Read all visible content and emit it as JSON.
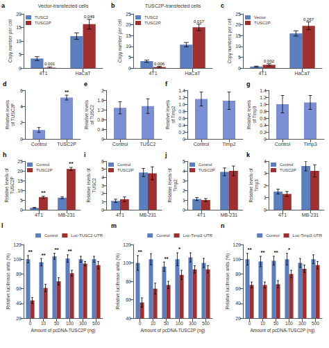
{
  "chart_data": [
    {
      "type": "bar",
      "panel": "a",
      "title": "Vector-transfected cells",
      "ylabel": "Copy number per cell",
      "categories": [
        "4T1",
        "HaCaT"
      ],
      "series": [
        {
          "name": "TUSC2",
          "color": "#5b7fbe",
          "values": [
            3.5,
            11.8
          ],
          "errors": [
            0.7,
            1.2
          ]
        },
        {
          "name": "TUSC2P",
          "color": "#a03030",
          "values": [
            0.15,
            16.2
          ],
          "errors": [
            0.3,
            1.8
          ]
        }
      ],
      "annotations": [
        {
          "text": "0.001",
          "category": "4T1",
          "series": "TUSC2P"
        },
        {
          "text": "0.049",
          "category": "HaCaT",
          "series": "TUSC2P"
        }
      ],
      "ylim": [
        0,
        20
      ],
      "yticks": [
        0,
        5,
        10,
        15,
        20
      ],
      "legend": "upper left",
      "grid": false
    },
    {
      "type": "bar",
      "panel": "b",
      "title": "TUSC2P-transfected cells",
      "ylabel": "Copy number per cell",
      "categories": [
        "4T1",
        "HaCaT"
      ],
      "series": [
        {
          "name": "TUSC2",
          "color": "#5b7fbe",
          "values": [
            3.2,
            10.8
          ],
          "errors": [
            0.5,
            1.0
          ]
        },
        {
          "name": "TUSC2P",
          "color": "#a03030",
          "values": [
            0.5,
            18.8
          ],
          "errors": [
            0.3,
            1.5
          ]
        }
      ],
      "annotations": [
        {
          "text": "0.006",
          "category": "4T1",
          "series": "TUSC2P"
        },
        {
          "text": "0.017",
          "category": "HaCaT",
          "series": "TUSC2P"
        }
      ],
      "ylim": [
        0,
        25
      ],
      "yticks": [
        0,
        5,
        10,
        15,
        20,
        25
      ],
      "legend": "upper left",
      "grid": false
    },
    {
      "type": "bar",
      "panel": "c",
      "ylabel": "Copy numbers per cell",
      "categories": [
        "4T1",
        "HaCaT"
      ],
      "series": [
        {
          "name": "Vector",
          "color": "#5b7fbe",
          "values": [
            0.7,
            16.0
          ],
          "errors": [
            0.2,
            1.2
          ]
        },
        {
          "name": "TUSC2P",
          "color": "#a03030",
          "values": [
            1.5,
            19.5
          ],
          "errors": [
            0.5,
            1.8
          ]
        }
      ],
      "annotations": [
        {
          "text": "0.002",
          "category": "4T1",
          "series": "TUSC2P"
        },
        {
          "text": "0.267",
          "category": "HaCaT",
          "series": "TUSC2P"
        }
      ],
      "ylim": [
        0,
        25
      ],
      "yticks": [
        0,
        5,
        10,
        15,
        20,
        25
      ],
      "legend": "upper left",
      "grid": false
    },
    {
      "type": "bar",
      "panel": "d",
      "ylabel": "Relative levels\nof TUSC2P",
      "categories": [
        "Control",
        "TUSC2P"
      ],
      "values": [
        1.1,
        5.1
      ],
      "errors": [
        0.3,
        0.3
      ],
      "color": "#7b8fd4",
      "annotations": [
        {
          "text": "**",
          "category": "TUSC2P"
        }
      ],
      "ylim": [
        0,
        6
      ],
      "yticks": [
        0,
        2,
        4,
        6
      ],
      "grid": false
    },
    {
      "type": "bar",
      "panel": "e",
      "ylabel": "Relative levels\nof TUSC2",
      "categories": [
        "Control",
        "TUSC2"
      ],
      "values": [
        1.28,
        1.35
      ],
      "errors": [
        0.25,
        0.3
      ],
      "color": "#7b8fd4",
      "ylim": [
        0,
        2
      ],
      "yticks": [
        0,
        0.4,
        0.8,
        1.2,
        1.6,
        2
      ],
      "grid": false
    },
    {
      "type": "bar",
      "panel": "f",
      "ylabel": "Relative levels\nof Timp2",
      "categories": [
        "Control",
        "Timp2"
      ],
      "values": [
        1.15,
        1.1
      ],
      "errors": [
        0.2,
        0.25
      ],
      "color": "#7b8fd4",
      "ylim": [
        0,
        1.4
      ],
      "yticks": [
        0,
        0.2,
        0.4,
        0.6,
        0.8,
        {
          "value": 1,
          "label": "1.0"
        },
        1.2,
        1.4
      ],
      "grid": false
    },
    {
      "type": "bar",
      "panel": "g",
      "ylabel": "Relative levels\nof Timp3",
      "categories": [
        "Control",
        "Timp3"
      ],
      "values": [
        1.0,
        1.05
      ],
      "errors": [
        0.25,
        0.2
      ],
      "color": "#7b8fd4",
      "ylim": [
        0,
        1.4
      ],
      "yticks": [
        0,
        0.2,
        0.4,
        0.6,
        0.8,
        {
          "value": 1,
          "label": "1.0"
        },
        1.2,
        1.4
      ],
      "grid": false
    },
    {
      "type": "bar",
      "panel": "h",
      "ylabel": "Relative levels of\nTUSC2P",
      "categories": [
        "4T1",
        "MB-231"
      ],
      "series": [
        {
          "name": "Control",
          "color": "#5b7fbe",
          "values": [
            1.0,
            6.2
          ],
          "errors": [
            0.2,
            0.5
          ]
        },
        {
          "name": "TUSC2P",
          "color": "#a03030",
          "values": [
            6.5,
            21.0
          ],
          "errors": [
            0.5,
            0.8
          ]
        }
      ],
      "annotations": [
        {
          "text": "**",
          "category": "4T1",
          "series": "TUSC2P"
        },
        {
          "text": "**",
          "category": "MB-231",
          "series": "TUSC2P"
        }
      ],
      "ylim": [
        0,
        25
      ],
      "yticks": [
        0,
        5,
        10,
        15,
        20,
        25
      ],
      "legend": "upper left",
      "grid": false
    },
    {
      "type": "bar",
      "panel": "i",
      "ylabel": "Relative levels of\nTUSC2",
      "categories": [
        "4T1",
        "MB-231"
      ],
      "series": [
        {
          "name": "Control",
          "color": "#5b7fbe",
          "values": [
            1.1,
            4.6
          ],
          "errors": [
            0.2,
            0.5
          ]
        },
        {
          "name": "TUSC2P",
          "color": "#a03030",
          "values": [
            1.3,
            4.5
          ],
          "errors": [
            0.3,
            0.8
          ]
        }
      ],
      "ylim": [
        0,
        6
      ],
      "yticks": [
        0,
        1,
        2,
        3,
        4,
        5,
        6
      ],
      "legend": "upper left",
      "grid": false
    },
    {
      "type": "bar",
      "panel": "j",
      "ylabel": "Relative levels of\nTimp2",
      "categories": [
        "4T1",
        "MB-231"
      ],
      "series": [
        {
          "name": "Control",
          "color": "#5b7fbe",
          "values": [
            1.1,
            3.9
          ],
          "errors": [
            0.15,
            0.4
          ]
        },
        {
          "name": "TUSC2P",
          "color": "#a03030",
          "values": [
            1.0,
            4.0
          ],
          "errors": [
            0.15,
            0.5
          ]
        }
      ],
      "ylim": [
        0,
        5
      ],
      "yticks": [
        0,
        1,
        2,
        3,
        4,
        5
      ],
      "legend": "upper left",
      "grid": false
    },
    {
      "type": "bar",
      "panel": "k",
      "ylabel": "Relative levels of\nTimp3",
      "categories": [
        "4T1",
        "MB-231"
      ],
      "series": [
        {
          "name": "Control",
          "color": "#5b7fbe",
          "values": [
            1.5,
            3.6
          ],
          "errors": [
            0.2,
            0.4
          ]
        },
        {
          "name": "TUSC2P",
          "color": "#a03030",
          "values": [
            1.3,
            3.2
          ],
          "errors": [
            0.2,
            0.5
          ]
        }
      ],
      "ylim": [
        0,
        4
      ],
      "yticks": [
        0,
        1,
        2,
        3,
        4
      ],
      "legend": "upper left",
      "grid": false
    },
    {
      "type": "bar",
      "panel": "l",
      "ylabel": "Relative luciferase units (%)",
      "xlabel": "Amount of pcDNA-TUSC2P (ng)",
      "categories": [
        "0",
        "10",
        "50",
        "100",
        "300",
        "500"
      ],
      "series": [
        {
          "name": "Control",
          "color": "#5b7fbe",
          "values": [
            100,
            96,
            104,
            101,
            100,
            100
          ],
          "errors": [
            5,
            5,
            4,
            5,
            4,
            4
          ]
        },
        {
          "name": "Luc-TUSC2-UTR",
          "color": "#a03030",
          "values": [
            44,
            61,
            70,
            81,
            94,
            92
          ],
          "errors": [
            4,
            5,
            5,
            4,
            3,
            5
          ]
        }
      ],
      "annotations": [
        {
          "text": "**",
          "category": "0"
        },
        {
          "text": "**",
          "category": "10"
        },
        {
          "text": "**",
          "category": "50"
        },
        {
          "text": "**",
          "category": "100"
        }
      ],
      "ylim": [
        20,
        120
      ],
      "yticks": [
        20,
        40,
        60,
        80,
        100,
        120
      ],
      "legend": "upper right",
      "grid": false
    },
    {
      "type": "bar",
      "panel": "m",
      "ylabel": "Relative luciferase units (%)",
      "xlabel": "Amount of pcDNA-TUSC2P (ng)",
      "categories": [
        "0",
        "10",
        "50",
        "100",
        "300",
        "500"
      ],
      "series": [
        {
          "name": "Control",
          "color": "#5b7fbe",
          "values": [
            100,
            104,
            96,
            104,
            106,
            100
          ],
          "errors": [
            8,
            6,
            5,
            7,
            5,
            5
          ]
        },
        {
          "name": "Luc-Timp2-UTR",
          "color": "#a03030",
          "values": [
            57,
            72,
            76,
            87,
            93,
            93
          ],
          "errors": [
            5,
            6,
            4,
            5,
            4,
            4
          ]
        }
      ],
      "annotations": [
        {
          "text": "**",
          "category": "0"
        },
        {
          "text": "**",
          "category": "50"
        },
        {
          "text": "*",
          "category": "100"
        }
      ],
      "ylim": [
        40,
        120
      ],
      "yticks": [
        40,
        60,
        80,
        100,
        120
      ],
      "legend": "upper right",
      "grid": false
    },
    {
      "type": "bar",
      "panel": "n",
      "ylabel": "Relative luciferase units (%)",
      "xlabel": "Amount of pcDNA-TUSC2P (ng)",
      "categories": [
        "0",
        "10",
        "50",
        "100",
        "300",
        "500"
      ],
      "series": [
        {
          "name": "Control",
          "color": "#5b7fbe",
          "values": [
            100,
            97,
            98,
            100,
            95,
            100
          ],
          "errors": [
            8,
            7,
            6,
            8,
            6,
            6
          ]
        },
        {
          "name": "Luc-Timp3-UTR",
          "color": "#a03030",
          "values": [
            65,
            65,
            66,
            80,
            87,
            92
          ],
          "errors": [
            4,
            4,
            5,
            5,
            5,
            5
          ]
        }
      ],
      "annotations": [
        {
          "text": "**",
          "category": "0"
        },
        {
          "text": "**",
          "category": "10"
        },
        {
          "text": "**",
          "category": "50"
        },
        {
          "text": "*",
          "category": "100"
        }
      ],
      "ylim": [
        20,
        120
      ],
      "yticks": [
        20,
        40,
        60,
        80,
        100,
        120
      ],
      "legend": "upper right",
      "grid": false
    }
  ]
}
